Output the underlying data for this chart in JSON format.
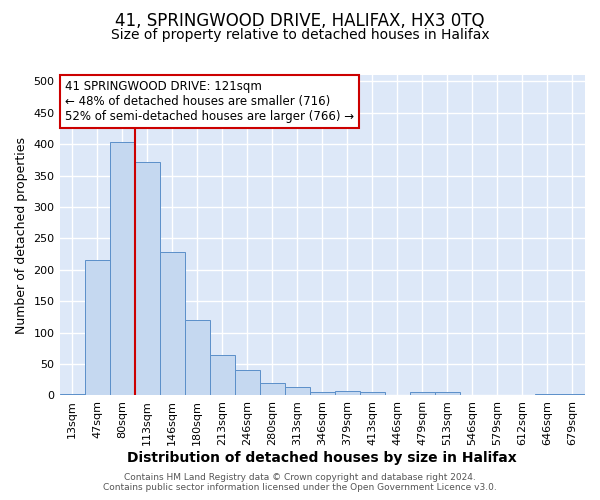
{
  "title": "41, SPRINGWOOD DRIVE, HALIFAX, HX3 0TQ",
  "subtitle": "Size of property relative to detached houses in Halifax",
  "xlabel": "Distribution of detached houses by size in Halifax",
  "ylabel": "Number of detached properties",
  "categories": [
    "13sqm",
    "47sqm",
    "80sqm",
    "113sqm",
    "146sqm",
    "180sqm",
    "213sqm",
    "246sqm",
    "280sqm",
    "313sqm",
    "346sqm",
    "379sqm",
    "413sqm",
    "446sqm",
    "479sqm",
    "513sqm",
    "546sqm",
    "579sqm",
    "612sqm",
    "646sqm",
    "679sqm"
  ],
  "values": [
    3,
    216,
    403,
    372,
    229,
    120,
    64,
    40,
    20,
    14,
    6,
    7,
    5,
    0,
    5,
    6,
    0,
    0,
    0,
    2,
    3
  ],
  "bar_color": "#c5d8f0",
  "bar_edge_color": "#5b8fc9",
  "bg_color": "#dde8f8",
  "grid_color": "#ffffff",
  "vline_x_idx": 3,
  "vline_color": "#cc0000",
  "annotation_line1": "41 SPRINGWOOD DRIVE: 121sqm",
  "annotation_line2": "← 48% of detached houses are smaller (716)",
  "annotation_line3": "52% of semi-detached houses are larger (766) →",
  "annotation_box_color": "white",
  "annotation_box_edge_color": "#cc0000",
  "footer_text": "Contains HM Land Registry data © Crown copyright and database right 2024.\nContains public sector information licensed under the Open Government Licence v3.0.",
  "ylim": [
    0,
    510
  ],
  "yticks": [
    0,
    50,
    100,
    150,
    200,
    250,
    300,
    350,
    400,
    450,
    500
  ],
  "title_fontsize": 12,
  "subtitle_fontsize": 10,
  "xlabel_fontsize": 10,
  "ylabel_fontsize": 9,
  "tick_fontsize": 8,
  "annot_fontsize": 8.5,
  "footer_fontsize": 6.5
}
